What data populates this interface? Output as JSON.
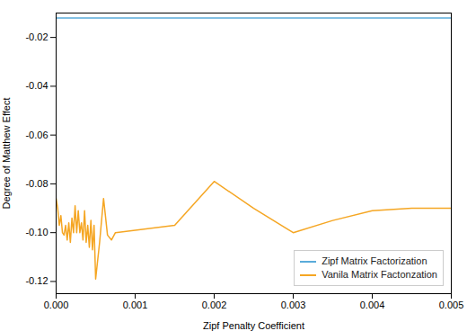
{
  "chart_data": {
    "type": "line",
    "xlabel": "Zipf Penalty Coefficient",
    "ylabel": "Degree of Matthew Effect",
    "series": [
      {
        "name": "Zipf Matrix Factorization",
        "color": "#5aabda",
        "x": [
          0.0,
          0.0005,
          0.001,
          0.0015,
          0.002,
          0.0025,
          0.003,
          0.0035,
          0.004,
          0.0045,
          0.005
        ],
        "values": [
          -0.012,
          -0.012,
          -0.012,
          -0.012,
          -0.012,
          -0.012,
          -0.012,
          -0.012,
          -0.012,
          -0.012,
          -0.012
        ]
      },
      {
        "name": "Vanila Matrix Factonzation",
        "color": "#f5a623",
        "x": [
          0.0,
          2e-05,
          4e-05,
          6e-05,
          8e-05,
          0.0001,
          0.00012,
          0.00014,
          0.00016,
          0.00018,
          0.0002,
          0.00022,
          0.00024,
          0.00026,
          0.00028,
          0.0003,
          0.00032,
          0.00034,
          0.00036,
          0.00038,
          0.0004,
          0.00042,
          0.00044,
          0.00046,
          0.00048,
          0.0005,
          0.00055,
          0.0006,
          0.00065,
          0.0007,
          0.00075,
          0.001,
          0.0015,
          0.002,
          0.0025,
          0.003,
          0.0035,
          0.004,
          0.0045,
          0.005
        ],
        "values": [
          -0.086,
          -0.09,
          -0.097,
          -0.093,
          -0.1,
          -0.101,
          -0.097,
          -0.103,
          -0.096,
          -0.104,
          -0.094,
          -0.1,
          -0.089,
          -0.1,
          -0.091,
          -0.1,
          -0.096,
          -0.103,
          -0.091,
          -0.104,
          -0.097,
          -0.106,
          -0.095,
          -0.107,
          -0.097,
          -0.119,
          -0.104,
          -0.086,
          -0.101,
          -0.103,
          -0.1,
          -0.099,
          -0.097,
          -0.079,
          -0.09,
          -0.1,
          -0.095,
          -0.091,
          -0.09,
          -0.09
        ]
      }
    ],
    "xlim": [
      0.0,
      0.005
    ],
    "ylim": [
      -0.125,
      -0.01
    ],
    "xticks": [
      {
        "value": 0.0,
        "label": "0.000"
      },
      {
        "value": 0.001,
        "label": "0.001"
      },
      {
        "value": 0.002,
        "label": "0.002"
      },
      {
        "value": 0.003,
        "label": "0.003"
      },
      {
        "value": 0.004,
        "label": "0.004"
      },
      {
        "value": 0.005,
        "label": "0.005"
      }
    ],
    "yticks": [
      -0.02,
      -0.04,
      -0.06,
      -0.08,
      {
        "value": -0.1,
        "label": "-0.10"
      },
      -0.12
    ],
    "grid": false,
    "legend": "lower right"
  }
}
